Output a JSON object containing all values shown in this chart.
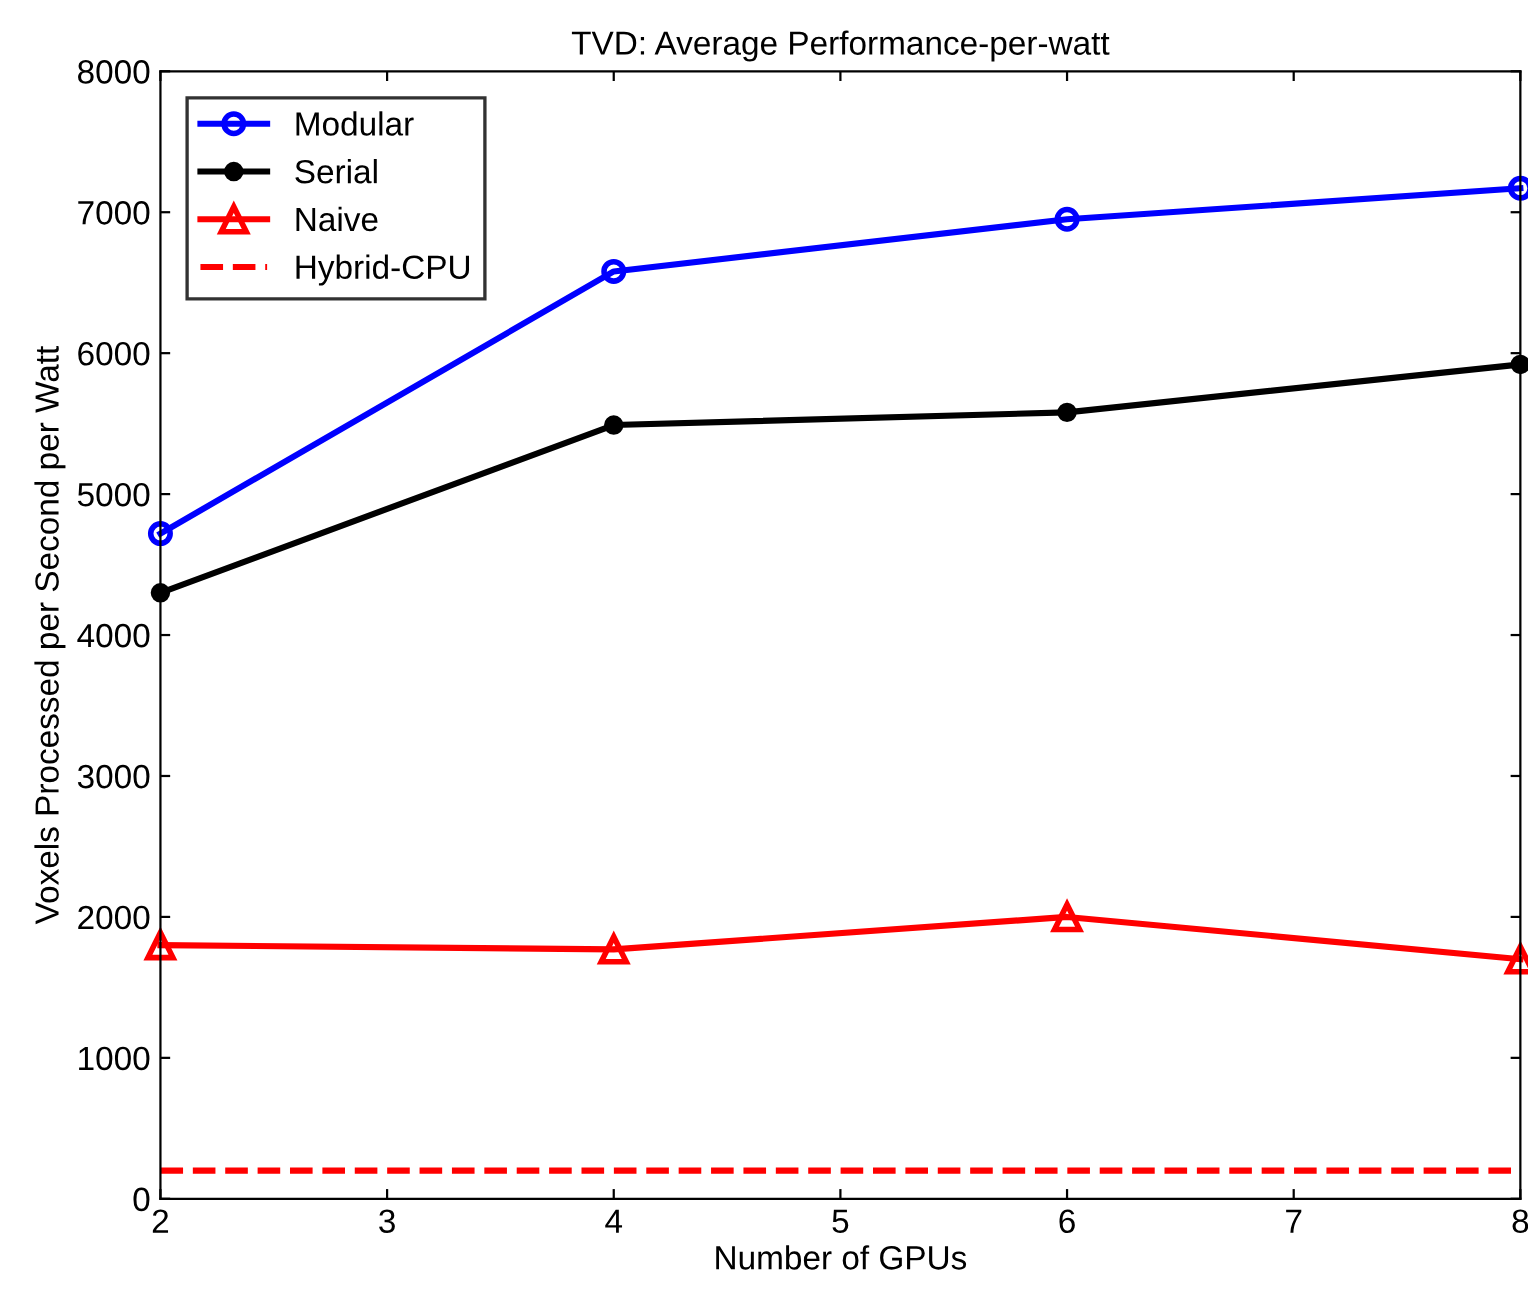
{
  "chart_data": {
    "type": "line",
    "title": "TVD: Average Performance-per-watt",
    "xlabel": "Number of GPUs",
    "ylabel": "Voxels Processed per Second per Watt",
    "x": [
      2,
      4,
      6,
      8
    ],
    "series": [
      {
        "name": "Modular",
        "color": "#0000ff",
        "values": [
          4720,
          6580,
          6950,
          7170
        ],
        "marker": "circle",
        "line_style": "solid"
      },
      {
        "name": "Serial",
        "color": "#000000",
        "values": [
          4300,
          5490,
          5580,
          5920
        ],
        "marker": "dot",
        "line_style": "solid"
      },
      {
        "name": "Naive",
        "color": "#ff0000",
        "values": [
          1800,
          1770,
          2000,
          1700
        ],
        "marker": "triangle",
        "line_style": "solid"
      },
      {
        "name": "Hybrid-CPU",
        "color": "#ff0000",
        "values": [
          200,
          200,
          200,
          200
        ],
        "marker": "none",
        "line_style": "dashed"
      }
    ],
    "xlim": [
      2,
      8
    ],
    "xticks": [
      2,
      3,
      4,
      5,
      6,
      7,
      8
    ],
    "ylim": [
      0,
      8000
    ],
    "yticks": [
      0,
      1000,
      2000,
      3000,
      4000,
      5000,
      6000,
      7000,
      8000
    ],
    "grid": false,
    "legend": "top left"
  }
}
